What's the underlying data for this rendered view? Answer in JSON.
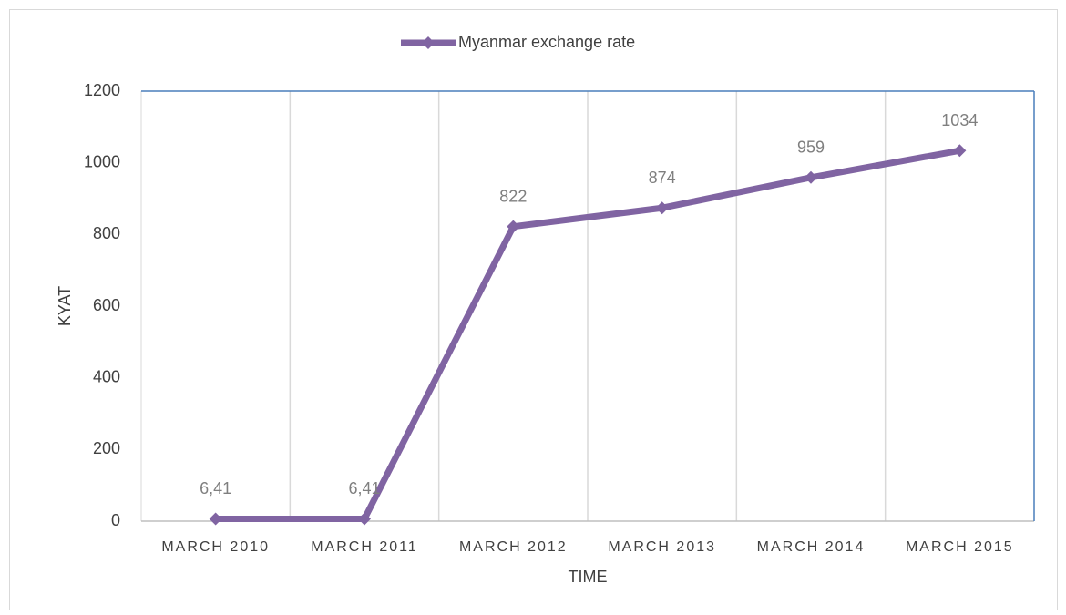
{
  "chart_data": {
    "type": "line",
    "legend": "Myanmar exchange rate",
    "x_label": "TIME",
    "y_label": "KYAT",
    "categories": [
      "MARCH 2010",
      "MARCH 2011",
      "MARCH 2012",
      "MARCH 2013",
      "MARCH 2014",
      "MARCH 2015"
    ],
    "values": [
      6.41,
      6.41,
      822,
      874,
      959,
      1034
    ],
    "value_labels": [
      "6,41",
      "6,41",
      "822",
      "874",
      "959",
      "1034"
    ],
    "color": "#8064a2",
    "ylim": [
      0,
      1200
    ],
    "yticks": [
      0,
      200,
      400,
      600,
      800,
      1000,
      1200
    ],
    "grid": true,
    "legend_position": "top"
  }
}
